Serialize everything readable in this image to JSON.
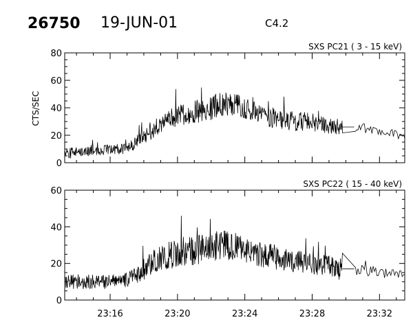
{
  "header": {
    "event_id": "26750",
    "date": "19-JUN-01",
    "flare_class": "C4.2"
  },
  "colors": {
    "trace": "#000000",
    "axes": "#000000",
    "background": "#ffffff"
  },
  "chart_data": [
    {
      "type": "line",
      "title": "SXS PC21  (  3 - 15 keV)",
      "ylabel": "CTS/SEC",
      "xlabel": "",
      "x_unit": "minutes after 23:00 UT",
      "xlim": [
        13.3,
        33.5
      ],
      "ylim": [
        0,
        80
      ],
      "yticks": [
        0,
        20,
        40,
        60,
        80
      ],
      "xtick_values": [
        16,
        20,
        24,
        28,
        32
      ],
      "xtick_labels": [
        "",
        "",
        "",
        "",
        ""
      ],
      "gap": [
        29.8,
        30.5
      ],
      "series": [
        {
          "x": [
            13.3,
            14,
            15,
            16,
            17,
            17.5,
            18,
            18.5,
            19,
            19.5,
            20,
            20.5,
            21,
            21.5,
            22,
            22.5,
            23,
            23.5,
            24,
            24.5,
            25,
            25.5,
            26,
            26.5,
            27,
            27.5,
            28,
            28.5,
            29,
            29.5,
            29.8,
            30.5,
            31,
            31.5,
            32,
            32.5,
            33,
            33.5
          ],
          "y": [
            6,
            8,
            9,
            10,
            10,
            14,
            20,
            24,
            28,
            32,
            34,
            35,
            37,
            38,
            40,
            42,
            43,
            42,
            39,
            37,
            34,
            33,
            32,
            31,
            30,
            30,
            29,
            28,
            27,
            26,
            26,
            26,
            25,
            24,
            23,
            22,
            21,
            21
          ],
          "noise": [
            4,
            4,
            4,
            4,
            4,
            5,
            6,
            7,
            7,
            7,
            8,
            8,
            8,
            9,
            9,
            9,
            9,
            9,
            9,
            8,
            8,
            8,
            7,
            7,
            7,
            7,
            7,
            6,
            6,
            6,
            6,
            4,
            4,
            4,
            4,
            4,
            4,
            4
          ]
        }
      ]
    },
    {
      "type": "line",
      "title": "SXS PC22  ( 15 - 40 keV)",
      "ylabel": "",
      "xlabel": "",
      "x_unit": "minutes after 23:00 UT",
      "xlim": [
        13.3,
        33.5
      ],
      "ylim": [
        0,
        60
      ],
      "yticks": [
        0,
        20,
        40,
        60
      ],
      "xtick_values": [
        16,
        20,
        24,
        28,
        32
      ],
      "xtick_labels": [
        "23:16",
        "23:20",
        "23:24",
        "23:28",
        "23:32"
      ],
      "gap": [
        29.8,
        30.5
      ],
      "series": [
        {
          "x": [
            13.3,
            14,
            15,
            16,
            17,
            17.5,
            18,
            18.5,
            19,
            19.5,
            20,
            20.5,
            21,
            21.5,
            22,
            22.5,
            23,
            23.5,
            24,
            24.5,
            25,
            25.5,
            26,
            26.5,
            27,
            27.5,
            28,
            28.5,
            29,
            29.5,
            29.8,
            30.5,
            31,
            31.5,
            32,
            32.5,
            33,
            33.5
          ],
          "y": [
            10,
            10,
            10,
            10,
            11,
            13,
            17,
            20,
            23,
            24,
            26,
            27,
            27,
            28,
            29,
            30,
            30,
            29,
            27,
            26,
            25,
            24,
            23,
            22,
            21,
            21,
            20,
            19,
            18,
            17,
            17,
            17,
            16,
            16,
            15,
            15,
            14,
            14
          ],
          "noise": [
            4,
            4,
            4,
            4,
            4,
            5,
            6,
            7,
            7,
            8,
            8,
            8,
            8,
            8,
            8,
            8,
            8,
            8,
            7,
            7,
            7,
            7,
            7,
            6,
            6,
            6,
            6,
            6,
            6,
            6,
            6,
            3,
            3,
            3,
            3,
            3,
            3,
            3
          ]
        }
      ]
    }
  ]
}
